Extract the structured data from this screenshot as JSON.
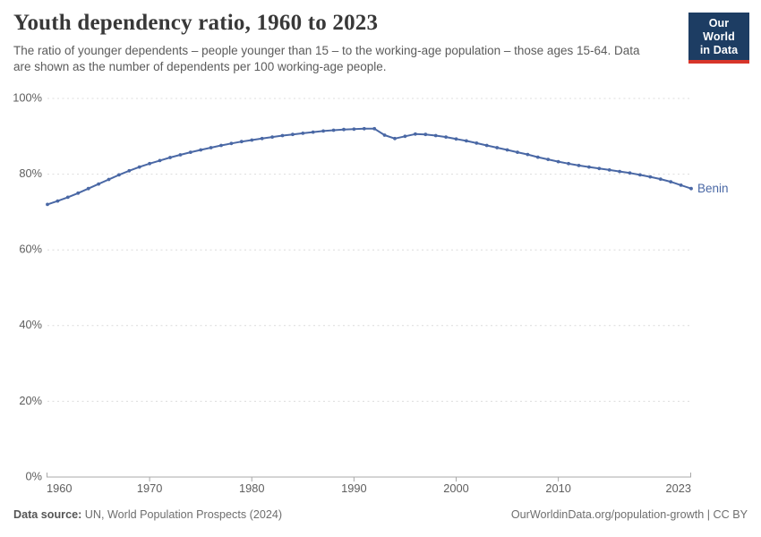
{
  "header": {
    "title": "Youth dependency ratio, 1960 to 2023",
    "subtitle": "The ratio of younger dependents – people younger than 15 – to the working-age population – those ages 15-64. Data are shown as the number of dependents per 100 working-age people."
  },
  "logo": {
    "line1": "Our World",
    "line2": "in Data",
    "background_color": "#1d3d63",
    "accent_color": "#d7352a"
  },
  "chart_data": {
    "type": "line",
    "title": "Youth dependency ratio, 1960 to 2023",
    "xlabel": "",
    "ylabel": "",
    "ylim": [
      0,
      100
    ],
    "yticks": [
      0,
      20,
      40,
      60,
      80,
      100
    ],
    "ytick_suffix": "%",
    "xticks": [
      1960,
      1970,
      1980,
      1990,
      2000,
      2010,
      2023
    ],
    "grid": "horizontal-dashed",
    "legend_position": "end-of-line-label",
    "series": [
      {
        "name": "Benin",
        "color": "#4a68a5",
        "x": [
          1960,
          1961,
          1962,
          1963,
          1964,
          1965,
          1966,
          1967,
          1968,
          1969,
          1970,
          1971,
          1972,
          1973,
          1974,
          1975,
          1976,
          1977,
          1978,
          1979,
          1980,
          1981,
          1982,
          1983,
          1984,
          1985,
          1986,
          1987,
          1988,
          1989,
          1990,
          1991,
          1992,
          1993,
          1994,
          1995,
          1996,
          1997,
          1998,
          1999,
          2000,
          2001,
          2002,
          2003,
          2004,
          2005,
          2006,
          2007,
          2008,
          2009,
          2010,
          2011,
          2012,
          2013,
          2014,
          2015,
          2016,
          2017,
          2018,
          2019,
          2020,
          2021,
          2022,
          2023
        ],
        "values": [
          72.0,
          72.9,
          73.9,
          75.0,
          76.2,
          77.4,
          78.6,
          79.8,
          80.9,
          81.9,
          82.8,
          83.6,
          84.4,
          85.1,
          85.8,
          86.4,
          87.0,
          87.6,
          88.1,
          88.6,
          89.0,
          89.4,
          89.8,
          90.2,
          90.5,
          90.8,
          91.1,
          91.4,
          91.6,
          91.8,
          91.9,
          92.0,
          92.0,
          90.3,
          89.4,
          90.0,
          90.6,
          90.5,
          90.2,
          89.8,
          89.3,
          88.8,
          88.2,
          87.6,
          87.0,
          86.4,
          85.8,
          85.2,
          84.5,
          83.9,
          83.3,
          82.8,
          82.3,
          81.9,
          81.5,
          81.1,
          80.7,
          80.3,
          79.8,
          79.3,
          78.7,
          78.0,
          77.1,
          76.2
        ]
      }
    ],
    "colors": {
      "line": "#4a68a5",
      "gridline": "#dcdcdc",
      "axis": "#a8a8a8",
      "tick_label": "#5e5e5e"
    }
  },
  "footer": {
    "datasource_label": "Data source:",
    "datasource_text": " UN, World Population Prospects (2024)",
    "rights_text": "OurWorldinData.org/population-growth | CC BY"
  }
}
